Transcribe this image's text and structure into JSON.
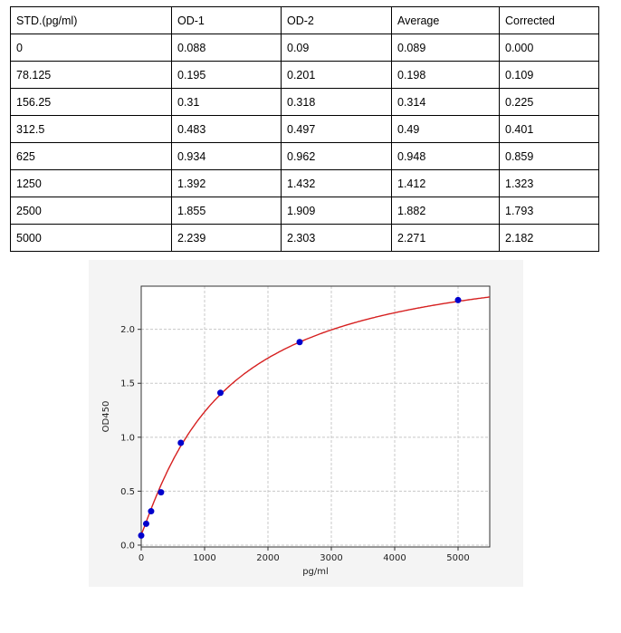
{
  "table": {
    "headers": [
      "STD.(pg/ml)",
      "OD-1",
      "OD-2",
      "Average",
      "Corrected"
    ],
    "rows": [
      [
        "0",
        "0.088",
        "0.09",
        "0.089",
        "0.000"
      ],
      [
        "78.125",
        "0.195",
        "0.201",
        "0.198",
        "0.109"
      ],
      [
        "156.25",
        "0.31",
        "0.318",
        "0.314",
        "0.225"
      ],
      [
        "312.5",
        "0.483",
        "0.497",
        "0.49",
        "0.401"
      ],
      [
        "625",
        "0.934",
        "0.962",
        "0.948",
        "0.859"
      ],
      [
        "1250",
        "1.392",
        "1.432",
        "1.412",
        "1.323"
      ],
      [
        "2500",
        "1.855",
        "1.909",
        "1.882",
        "1.793"
      ],
      [
        "5000",
        "2.239",
        "2.303",
        "2.271",
        "2.182"
      ]
    ]
  },
  "chart_data": {
    "type": "scatter",
    "title": "",
    "xlabel": "pg/ml",
    "ylabel": "OD450",
    "xlim": [
      0,
      5500
    ],
    "ylim": [
      -0.017,
      2.4
    ],
    "xticks": [
      "0",
      "1000",
      "2000",
      "3000",
      "4000",
      "5000"
    ],
    "yticks": [
      "0.0",
      "0.5",
      "1.0",
      "1.5",
      "2.0"
    ],
    "grid": true,
    "points": {
      "x": [
        0,
        78.125,
        156.25,
        312.5,
        625,
        1250,
        2500,
        5000
      ],
      "y": [
        0.089,
        0.198,
        0.314,
        0.49,
        0.948,
        1.412,
        1.882,
        2.271
      ],
      "color": "#0000cc"
    },
    "fit_curve": {
      "model": "4PL",
      "a": 0.1,
      "b": 1.1,
      "c": 1300,
      "d": 2.75,
      "color": "#d62020"
    }
  }
}
